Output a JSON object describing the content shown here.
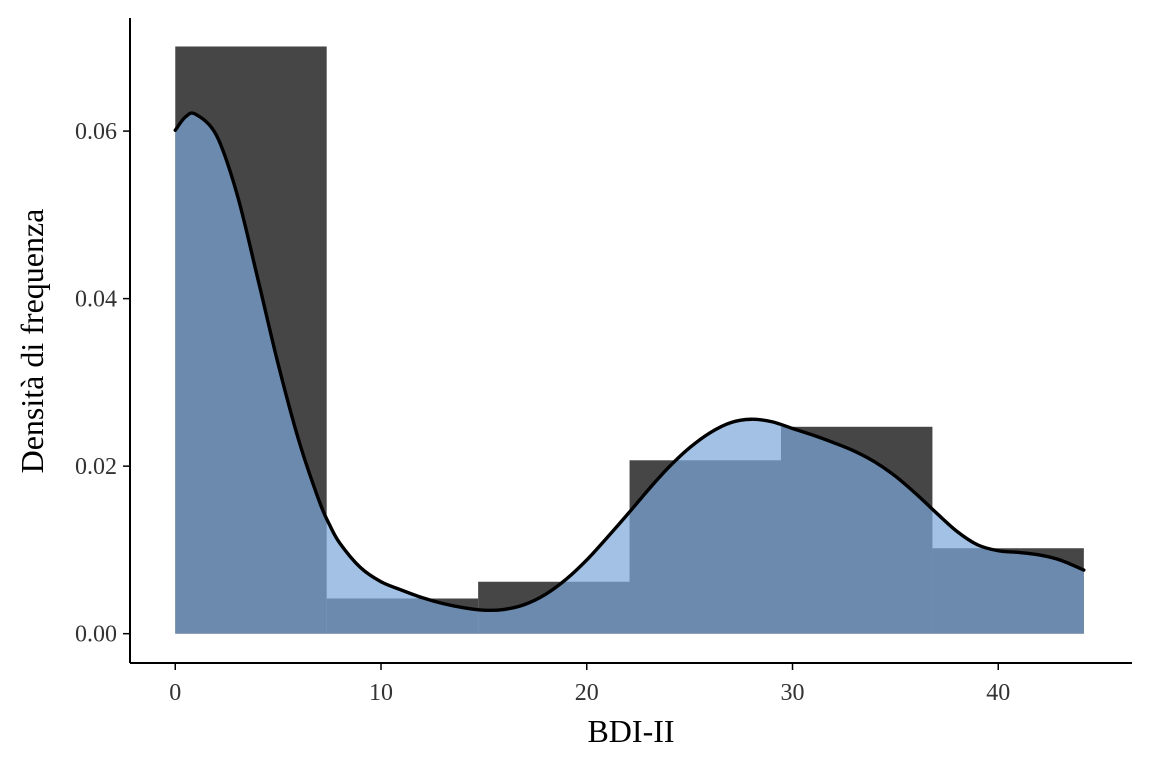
{
  "chart_data": {
    "type": "bar",
    "xlabel": "BDI-II",
    "ylabel": "Densità di frequenza",
    "xlim": [
      -2.2,
      46.5
    ],
    "ylim": [
      -0.0035,
      0.0735
    ],
    "x_ticks": [
      0,
      10,
      20,
      30,
      40
    ],
    "x_tick_labels": [
      "0",
      "10",
      "20",
      "30",
      "40"
    ],
    "y_ticks": [
      0,
      0.02,
      0.04,
      0.06
    ],
    "y_tick_labels": [
      "0.00",
      "0.02",
      "0.04",
      "0.06"
    ],
    "grid": false,
    "histogram": {
      "bin_edges": [
        0,
        7.36,
        14.72,
        22.08,
        29.44,
        36.8,
        44.16
      ],
      "density": [
        0.0701,
        0.0042,
        0.0062,
        0.0207,
        0.0247,
        0.0102
      ]
    },
    "density_curve": {
      "x": [
        0,
        0.5,
        1,
        2,
        3,
        4,
        5,
        6,
        7,
        7.5,
        8,
        9,
        10,
        11,
        12,
        13,
        14,
        15,
        16,
        17,
        18,
        19,
        20,
        21,
        22,
        23,
        24,
        25,
        26,
        27,
        28,
        29,
        30,
        31,
        32,
        33,
        34,
        35,
        36,
        37,
        38,
        39,
        40,
        41,
        42,
        43,
        44.16
      ],
      "y": [
        0.0601,
        0.0617,
        0.062,
        0.0595,
        0.0525,
        0.0425,
        0.0322,
        0.0231,
        0.0158,
        0.013,
        0.0108,
        0.0079,
        0.0062,
        0.0052,
        0.0043,
        0.0036,
        0.0031,
        0.0028,
        0.0029,
        0.0035,
        0.0047,
        0.0065,
        0.0088,
        0.0115,
        0.0143,
        0.0172,
        0.0199,
        0.0222,
        0.024,
        0.0252,
        0.0256,
        0.0253,
        0.0245,
        0.0237,
        0.0228,
        0.0218,
        0.0205,
        0.0188,
        0.0167,
        0.0144,
        0.0122,
        0.0106,
        0.0099,
        0.0097,
        0.0094,
        0.0088,
        0.0076
      ]
    },
    "colors": {
      "histogram_bars": "#464646",
      "density_fill": "#7aa6d8",
      "density_fill_opacity": 0.7,
      "density_line": "#000000",
      "axis": "#000000",
      "tick_labels": "#333333"
    }
  }
}
